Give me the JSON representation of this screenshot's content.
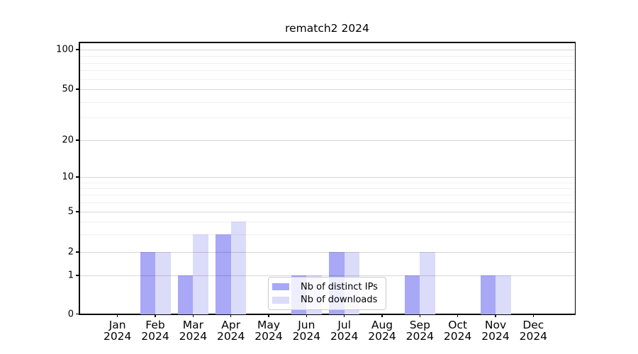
{
  "chart_data": {
    "type": "bar",
    "title": "rematch2 2024",
    "categories": [
      "Jan\n2024",
      "Feb\n2024",
      "Mar\n2024",
      "Apr\n2024",
      "May\n2024",
      "Jun\n2024",
      "Jul\n2024",
      "Aug\n2024",
      "Sep\n2024",
      "Oct\n2024",
      "Nov\n2024",
      "Dec\n2024"
    ],
    "series": [
      {
        "name": "Nb of distinct IPs",
        "color": "#a8a8f7",
        "values": [
          0,
          2,
          1,
          3,
          0,
          1,
          2,
          0,
          1,
          0,
          1,
          0
        ]
      },
      {
        "name": "Nb of downloads",
        "color": "#dbdbfa",
        "values": [
          0,
          2,
          3,
          4,
          0,
          1,
          2,
          0,
          2,
          0,
          1,
          0
        ]
      }
    ],
    "yscale": "symlog",
    "ylim": [
      0,
      100
    ],
    "yticks_major": [
      0,
      1,
      2,
      5,
      10,
      20,
      50,
      100
    ],
    "yticks_minor": [
      3,
      4,
      6,
      7,
      8,
      9,
      30,
      40,
      60,
      70,
      80,
      90
    ],
    "grid": "both",
    "legend_position": "lower center"
  }
}
